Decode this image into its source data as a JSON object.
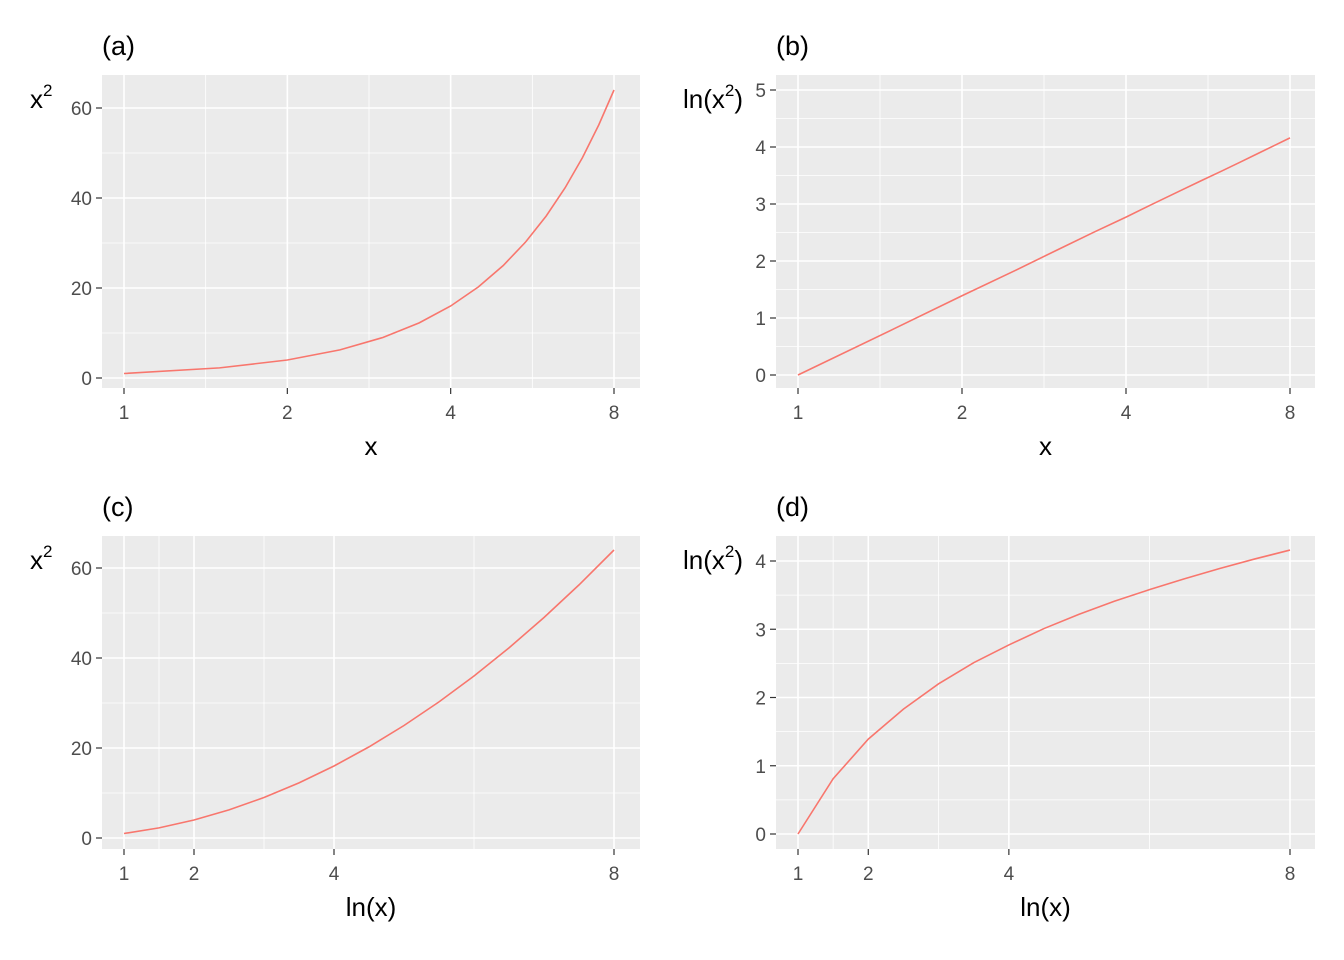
{
  "chart_data": [
    {
      "type": "line",
      "tag": "(a)",
      "xlabel": "x",
      "ylabel": {
        "base": "x",
        "sup": "2",
        "pre": "",
        "post": ""
      },
      "xscale": "log",
      "xlim": [
        1,
        8
      ],
      "ylim": [
        0,
        64
      ],
      "xticks": [
        1,
        2,
        4,
        8
      ],
      "yticks": [
        0,
        20,
        40,
        60
      ],
      "line_color": "#F8766D",
      "series": [
        {
          "x": [
            1,
            1.5,
            2,
            2.5,
            3,
            3.5,
            4,
            4.5,
            5,
            5.5,
            6,
            6.5,
            7,
            7.5,
            8
          ],
          "y": [
            1,
            2.25,
            4,
            6.25,
            9,
            12.25,
            16,
            20.25,
            25,
            30.25,
            36,
            42.25,
            49,
            56.25,
            64
          ]
        }
      ]
    },
    {
      "type": "line",
      "tag": "(b)",
      "xlabel": "x",
      "ylabel": {
        "base": "x",
        "sup": "2",
        "pre": "ln(",
        "post": ")"
      },
      "xscale": "log",
      "xlim": [
        1,
        8
      ],
      "ylim": [
        0,
        5
      ],
      "xticks": [
        1,
        2,
        4,
        8
      ],
      "yticks": [
        0,
        1,
        2,
        3,
        4,
        5
      ],
      "line_color": "#F8766D",
      "series": [
        {
          "x": [
            1,
            1.5,
            2,
            2.5,
            3,
            3.5,
            4,
            4.5,
            5,
            5.5,
            6,
            6.5,
            7,
            7.5,
            8
          ],
          "y": [
            0,
            0.81,
            1.39,
            1.83,
            2.2,
            2.51,
            2.77,
            3.01,
            3.22,
            3.41,
            3.58,
            3.74,
            3.89,
            4.03,
            4.16
          ]
        }
      ]
    },
    {
      "type": "line",
      "tag": "(c)",
      "xlabel": "ln(x)",
      "ylabel": {
        "base": "x",
        "sup": "2",
        "pre": "",
        "post": ""
      },
      "xscale": "linear",
      "xlim": [
        1,
        8
      ],
      "ylim": [
        0,
        64
      ],
      "xticks": [
        1,
        2,
        4,
        8
      ],
      "yticks": [
        0,
        20,
        40,
        60
      ],
      "line_color": "#F8766D",
      "series": [
        {
          "x": [
            1,
            1.5,
            2,
            2.5,
            3,
            3.5,
            4,
            4.5,
            5,
            5.5,
            6,
            6.5,
            7,
            7.5,
            8
          ],
          "y": [
            1,
            2.25,
            4,
            6.25,
            9,
            12.25,
            16,
            20.25,
            25,
            30.25,
            36,
            42.25,
            49,
            56.25,
            64
          ]
        }
      ]
    },
    {
      "type": "line",
      "tag": "(d)",
      "xlabel": "ln(x)",
      "ylabel": {
        "base": "x",
        "sup": "2",
        "pre": "ln(",
        "post": ")"
      },
      "xscale": "linear",
      "xlim": [
        1,
        8
      ],
      "ylim": [
        0,
        4.16
      ],
      "xticks": [
        1,
        2,
        4,
        8
      ],
      "yticks": [
        0,
        1,
        2,
        3,
        4
      ],
      "line_color": "#F8766D",
      "series": [
        {
          "x": [
            1,
            1.5,
            2,
            2.5,
            3,
            3.5,
            4,
            4.5,
            5,
            5.5,
            6,
            6.5,
            7,
            7.5,
            8
          ],
          "y": [
            0,
            0.81,
            1.39,
            1.83,
            2.2,
            2.51,
            2.77,
            3.01,
            3.22,
            3.41,
            3.58,
            3.74,
            3.89,
            4.03,
            4.16
          ]
        }
      ]
    }
  ]
}
